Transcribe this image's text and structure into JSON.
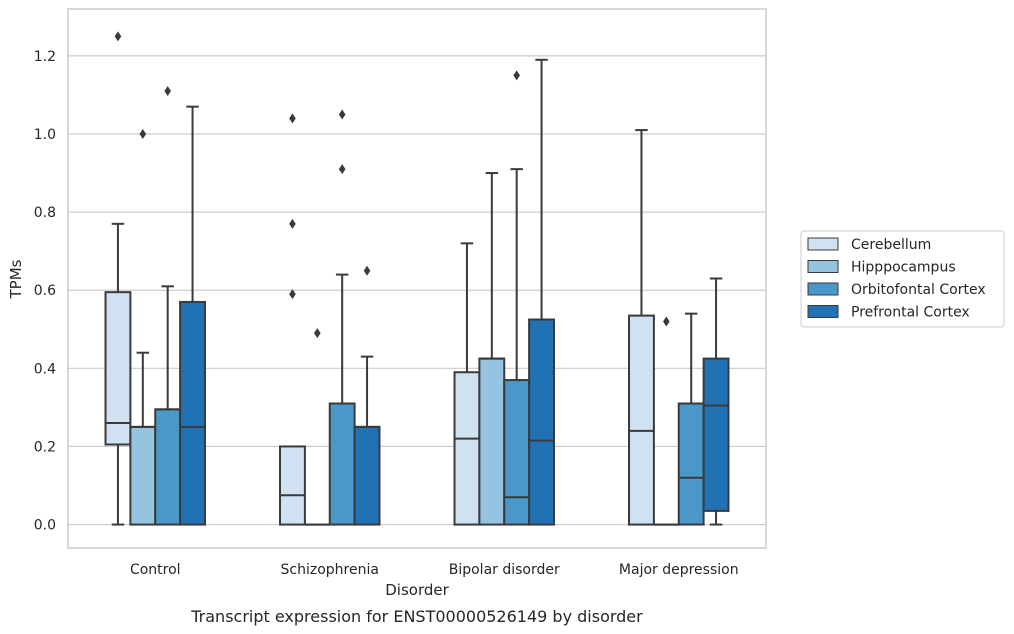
{
  "caption": "Transcript expression for ENST00000526149 by disorder",
  "chart_data": {
    "type": "boxplot",
    "xlabel": "Disorder",
    "ylabel": "TPMs",
    "ylim": [
      -0.06,
      1.32
    ],
    "yticks": [
      "0.0",
      "0.2",
      "0.4",
      "0.6",
      "0.8",
      "1.0",
      "1.2"
    ],
    "grid": true,
    "legend_position": "center-right",
    "categories": [
      "Control",
      "Schizophrenia",
      "Bipolar disorder",
      "Major depression"
    ],
    "series": [
      {
        "name": "Cerebellum",
        "color": "#d0e1f2",
        "boxes": [
          {
            "whisker_low": 0,
            "q1": 0.205,
            "median": 0.26,
            "q3": 0.595,
            "whisker_high": 0.77,
            "outliers": [
              1.25
            ]
          },
          {
            "whisker_low": 0,
            "q1": 0,
            "median": 0.075,
            "q3": 0.2,
            "whisker_high": 0.2,
            "outliers": [
              1.04,
              0.77,
              0.59
            ]
          },
          {
            "whisker_low": 0,
            "q1": 0,
            "median": 0.22,
            "q3": 0.39,
            "whisker_high": 0.72,
            "outliers": []
          },
          {
            "whisker_low": 0,
            "q1": 0,
            "median": 0.24,
            "q3": 0.535,
            "whisker_high": 1.01,
            "outliers": []
          }
        ]
      },
      {
        "name": "Hipppocampus",
        "color": "#94c4df",
        "boxes": [
          {
            "whisker_low": 0,
            "q1": 0,
            "median": 0.25,
            "q3": 0.25,
            "whisker_high": 0.44,
            "outliers": [
              1.0
            ]
          },
          {
            "whisker_low": 0,
            "q1": 0,
            "median": 0,
            "q3": 0,
            "whisker_high": 0,
            "outliers": [
              0.49
            ]
          },
          {
            "whisker_low": 0,
            "q1": 0,
            "median": 0.425,
            "q3": 0.425,
            "whisker_high": 0.9,
            "outliers": []
          },
          {
            "whisker_low": 0,
            "q1": 0,
            "median": 0,
            "q3": 0,
            "whisker_high": 0,
            "outliers": [
              0.52
            ]
          }
        ]
      },
      {
        "name": "Orbitofontal Cortex",
        "color": "#4a98c9",
        "boxes": [
          {
            "whisker_low": 0,
            "q1": 0,
            "median": 0.295,
            "q3": 0.295,
            "whisker_high": 0.61,
            "outliers": [
              1.11
            ]
          },
          {
            "whisker_low": 0,
            "q1": 0,
            "median": 0.31,
            "q3": 0.31,
            "whisker_high": 0.64,
            "outliers": [
              1.05,
              0.91
            ]
          },
          {
            "whisker_low": 0,
            "q1": 0,
            "median": 0.07,
            "q3": 0.37,
            "whisker_high": 0.91,
            "outliers": [
              1.15
            ]
          },
          {
            "whisker_low": 0,
            "q1": 0,
            "median": 0.12,
            "q3": 0.31,
            "whisker_high": 0.54,
            "outliers": []
          }
        ]
      },
      {
        "name": "Prefrontal Cortex",
        "color": "#2171b5",
        "boxes": [
          {
            "whisker_low": 0,
            "q1": 0,
            "median": 0.25,
            "q3": 0.57,
            "whisker_high": 1.07,
            "outliers": []
          },
          {
            "whisker_low": 0,
            "q1": 0,
            "median": 0.25,
            "q3": 0.25,
            "whisker_high": 0.43,
            "outliers": [
              0.65
            ]
          },
          {
            "whisker_low": 0,
            "q1": 0,
            "median": 0.215,
            "q3": 0.525,
            "whisker_high": 1.19,
            "outliers": []
          },
          {
            "whisker_low": 0,
            "q1": 0.035,
            "median": 0.305,
            "q3": 0.425,
            "whisker_high": 0.63,
            "outliers": []
          }
        ]
      }
    ]
  }
}
